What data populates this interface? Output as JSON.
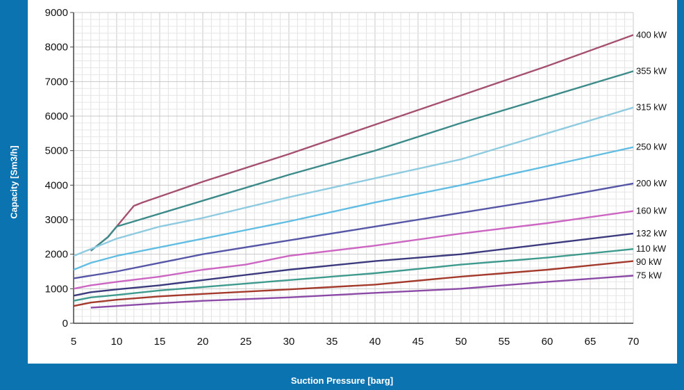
{
  "chart_data": {
    "type": "line",
    "title": "",
    "xlabel": "Suction Pressure [barg]",
    "ylabel": "Capacity [Sm3/h]",
    "xlim": [
      5,
      70
    ],
    "ylim": [
      0,
      9000
    ],
    "xticks": [
      5,
      10,
      15,
      20,
      25,
      30,
      35,
      40,
      45,
      50,
      55,
      60,
      65,
      70
    ],
    "yticks": [
      0,
      1000,
      2000,
      3000,
      4000,
      5000,
      6000,
      7000,
      8000,
      9000
    ],
    "grid": true,
    "legend": "right (labels at line ends)",
    "series": [
      {
        "name": "400 kW",
        "color": "#a4506e",
        "x": [
          7,
          9,
          10,
          12,
          13,
          20,
          30,
          40,
          50,
          60,
          70
        ],
        "y": [
          2100,
          2500,
          2800,
          3400,
          3500,
          4100,
          4900,
          5750,
          6600,
          7450,
          8350
        ]
      },
      {
        "name": "355 kW",
        "color": "#3d8a8a",
        "x": [
          7,
          8,
          9,
          10,
          12,
          20,
          30,
          40,
          50,
          60,
          70
        ],
        "y": [
          2100,
          2300,
          2500,
          2800,
          2950,
          3550,
          4300,
          5000,
          5800,
          6550,
          7300
        ]
      },
      {
        "name": "315 kW",
        "color": "#8fcbe0",
        "x": [
          5,
          7,
          10,
          15,
          20,
          30,
          40,
          50,
          60,
          70
        ],
        "y": [
          1950,
          2150,
          2450,
          2800,
          3050,
          3650,
          4200,
          4750,
          5500,
          6250
        ]
      },
      {
        "name": "250 kW",
        "color": "#62bde3",
        "x": [
          5,
          7,
          10,
          15,
          20,
          30,
          40,
          50,
          60,
          70
        ],
        "y": [
          1550,
          1750,
          1950,
          2200,
          2450,
          2950,
          3500,
          4000,
          4550,
          5100
        ]
      },
      {
        "name": "200 kW",
        "color": "#5556a6",
        "x": [
          5,
          10,
          15,
          20,
          30,
          40,
          50,
          60,
          70
        ],
        "y": [
          1300,
          1500,
          1750,
          2000,
          2400,
          2800,
          3200,
          3600,
          4050
        ]
      },
      {
        "name": "160 kW",
        "color": "#cc66c2",
        "x": [
          5,
          7,
          10,
          15,
          20,
          25,
          28,
          30,
          40,
          50,
          60,
          70
        ],
        "y": [
          1000,
          1100,
          1200,
          1350,
          1550,
          1700,
          1850,
          1950,
          2250,
          2600,
          2900,
          3250
        ]
      },
      {
        "name": "132 kW",
        "color": "#3c3a7e",
        "x": [
          5,
          7,
          10,
          15,
          20,
          30,
          40,
          50,
          60,
          70
        ],
        "y": [
          800,
          900,
          980,
          1100,
          1250,
          1550,
          1800,
          2000,
          2300,
          2600
        ]
      },
      {
        "name": "110 kW",
        "color": "#3f9a8e",
        "x": [
          5,
          7,
          10,
          15,
          20,
          30,
          40,
          50,
          60,
          70
        ],
        "y": [
          650,
          750,
          820,
          950,
          1050,
          1250,
          1450,
          1700,
          1900,
          2150
        ]
      },
      {
        "name": "90 kW",
        "color": "#a33a2c",
        "x": [
          5,
          7,
          10,
          15,
          20,
          30,
          40,
          50,
          60,
          70
        ],
        "y": [
          500,
          600,
          680,
          780,
          850,
          980,
          1120,
          1350,
          1550,
          1800
        ]
      },
      {
        "name": "75 kW",
        "color": "#8a4aa6",
        "x": [
          7,
          10,
          15,
          20,
          30,
          40,
          50,
          60,
          70
        ],
        "y": [
          450,
          500,
          580,
          650,
          750,
          880,
          1000,
          1200,
          1380
        ]
      }
    ]
  }
}
